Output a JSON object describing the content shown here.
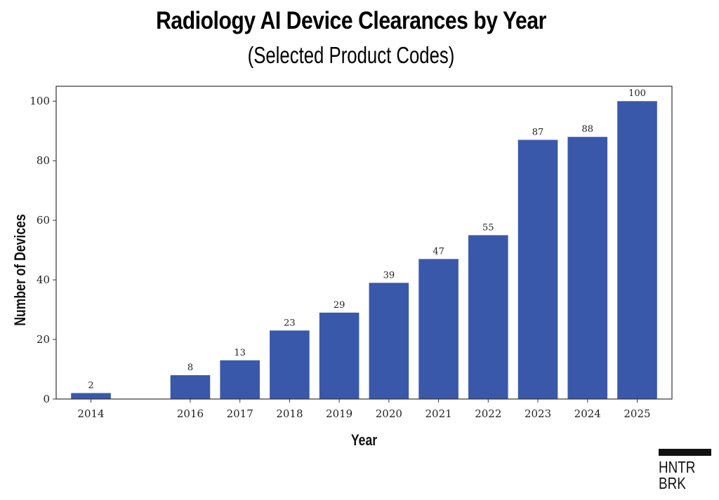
{
  "chart_data": {
    "type": "bar",
    "title": "Radiology AI Device Clearances by Year",
    "subtitle": "(Selected Product Codes)",
    "xlabel": "Year",
    "ylabel": "Number of Devices",
    "categories": [
      "2014",
      "2016",
      "2017",
      "2018",
      "2019",
      "2020",
      "2021",
      "2022",
      "2023",
      "2024",
      "2025"
    ],
    "x": [
      2014,
      2016,
      2017,
      2018,
      2019,
      2020,
      2021,
      2022,
      2023,
      2024,
      2025
    ],
    "values": [
      2,
      8,
      13,
      23,
      29,
      39,
      47,
      55,
      87,
      88,
      100
    ],
    "data_labels": [
      "2",
      "8",
      "13",
      "23",
      "29",
      "39",
      "47",
      "55",
      "87",
      "88",
      "100"
    ],
    "ylim": [
      0,
      105
    ],
    "xlim": [
      2013.3,
      2025.7
    ],
    "yticks": [
      0,
      20,
      40,
      60,
      80,
      100
    ],
    "grid": false,
    "bar_color": "#3a58aa"
  },
  "logo": {
    "line1": "HNTR",
    "line2": "BRK"
  }
}
